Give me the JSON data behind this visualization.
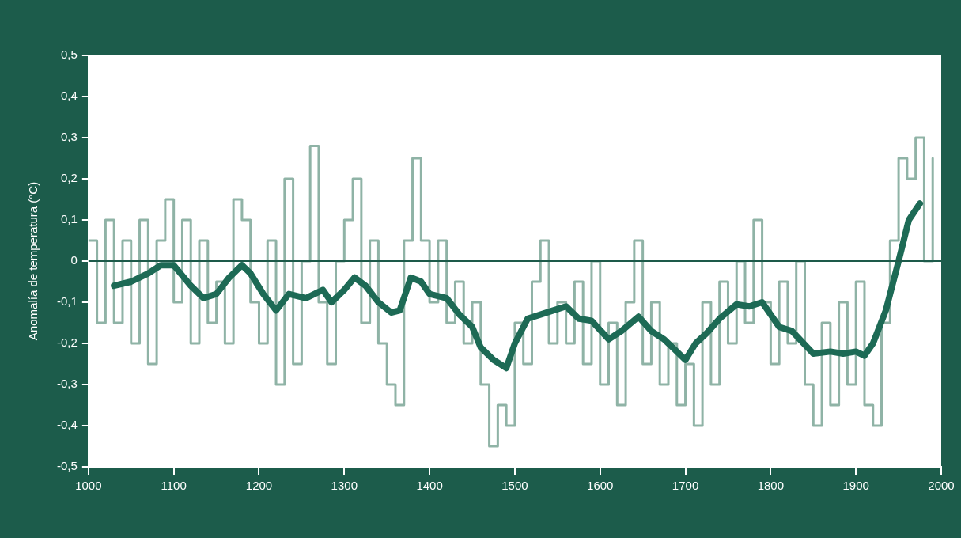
{
  "chart_data": {
    "type": "line",
    "ylabel": "Anomalía de temperatura (°C)",
    "xlim": [
      1000,
      2000
    ],
    "xticks": [
      1000,
      1100,
      1200,
      1300,
      1400,
      1500,
      1600,
      1700,
      1800,
      1900,
      2000
    ],
    "ylim": [
      -0.5,
      0.5
    ],
    "yticks": [
      {
        "value": -0.5,
        "label": "-0,5"
      },
      {
        "value": -0.4,
        "label": "-0,4"
      },
      {
        "value": -0.3,
        "label": "-0,3"
      },
      {
        "value": -0.2,
        "label": "-0,2"
      },
      {
        "value": -0.1,
        "label": "-0,1"
      },
      0,
      {
        "value": 0.1,
        "label": "0,1"
      },
      {
        "value": 0.2,
        "label": "0,2"
      },
      {
        "value": 0.3,
        "label": "0,3"
      },
      {
        "value": 0.4,
        "label": "0,4"
      },
      {
        "value": 0.5,
        "label": "0,5"
      }
    ],
    "grid": false,
    "legend": false,
    "ref_lines": [
      {
        "axis": "y",
        "value": 0,
        "color": "#1d5a4a"
      }
    ],
    "series": [
      {
        "type": "step",
        "color": "#8fb3a6",
        "x": [
          1000,
          1010,
          1020,
          1030,
          1040,
          1050,
          1060,
          1070,
          1080,
          1090,
          1100,
          1110,
          1120,
          1130,
          1140,
          1150,
          1160,
          1170,
          1180,
          1190,
          1200,
          1210,
          1220,
          1230,
          1240,
          1250,
          1260,
          1270,
          1280,
          1290,
          1300,
          1310,
          1320,
          1330,
          1340,
          1350,
          1360,
          1370,
          1380,
          1390,
          1400,
          1410,
          1420,
          1430,
          1440,
          1450,
          1460,
          1470,
          1480,
          1490,
          1500,
          1510,
          1520,
          1530,
          1540,
          1550,
          1560,
          1570,
          1580,
          1590,
          1600,
          1610,
          1620,
          1630,
          1640,
          1650,
          1660,
          1670,
          1680,
          1690,
          1700,
          1710,
          1720,
          1730,
          1740,
          1750,
          1760,
          1770,
          1780,
          1790,
          1800,
          1810,
          1820,
          1830,
          1840,
          1850,
          1860,
          1870,
          1880,
          1890,
          1900,
          1910,
          1920,
          1930,
          1940,
          1950,
          1960,
          1970,
          1980,
          1990
        ],
        "values": [
          0.05,
          -0.15,
          0.1,
          -0.15,
          0.05,
          -0.2,
          0.1,
          -0.25,
          0.05,
          0.15,
          -0.1,
          0.1,
          -0.2,
          0.05,
          -0.15,
          -0.05,
          -0.2,
          0.15,
          0.1,
          -0.1,
          -0.2,
          0.05,
          -0.3,
          0.2,
          -0.25,
          0,
          0.28,
          -0.1,
          -0.25,
          0,
          0.1,
          0.2,
          -0.15,
          0.05,
          -0.2,
          -0.3,
          -0.35,
          0.05,
          0.25,
          0.05,
          -0.1,
          0.05,
          -0.15,
          -0.05,
          -0.2,
          -0.1,
          -0.3,
          -0.45,
          -0.35,
          -0.4,
          -0.15,
          -0.25,
          -0.05,
          0.05,
          -0.2,
          -0.1,
          -0.2,
          -0.05,
          -0.25,
          0,
          -0.3,
          -0.15,
          -0.35,
          -0.1,
          0.05,
          -0.25,
          -0.1,
          -0.3,
          -0.2,
          -0.35,
          -0.25,
          -0.4,
          -0.1,
          -0.3,
          -0.05,
          -0.2,
          0,
          -0.15,
          0.1,
          -0.1,
          -0.25,
          -0.05,
          -0.2,
          0,
          -0.3,
          -0.4,
          -0.15,
          -0.35,
          -0.1,
          -0.3,
          -0.05,
          -0.35,
          -0.4,
          -0.15,
          0.05,
          0.25,
          0.2,
          0.3,
          0,
          0.25
        ]
      },
      {
        "type": "line",
        "color": "#1d6a55",
        "x": [
          1030,
          1050,
          1070,
          1085,
          1100,
          1120,
          1135,
          1150,
          1165,
          1180,
          1190,
          1205,
          1220,
          1235,
          1255,
          1275,
          1285,
          1300,
          1312,
          1325,
          1340,
          1355,
          1365,
          1378,
          1390,
          1400,
          1420,
          1435,
          1450,
          1460,
          1475,
          1490,
          1500,
          1515,
          1530,
          1545,
          1560,
          1575,
          1590,
          1610,
          1625,
          1645,
          1660,
          1675,
          1690,
          1700,
          1712,
          1725,
          1740,
          1760,
          1775,
          1790,
          1810,
          1825,
          1850,
          1870,
          1885,
          1900,
          1910,
          1920,
          1935,
          1950,
          1962,
          1975
        ],
        "values": [
          -0.06,
          -0.05,
          -0.03,
          -0.01,
          -0.01,
          -0.06,
          -0.09,
          -0.08,
          -0.04,
          -0.01,
          -0.03,
          -0.08,
          -0.12,
          -0.08,
          -0.09,
          -0.07,
          -0.1,
          -0.07,
          -0.04,
          -0.06,
          -0.1,
          -0.125,
          -0.12,
          -0.04,
          -0.05,
          -0.08,
          -0.09,
          -0.13,
          -0.16,
          -0.21,
          -0.24,
          -0.26,
          -0.2,
          -0.14,
          -0.13,
          -0.12,
          -0.11,
          -0.14,
          -0.145,
          -0.19,
          -0.17,
          -0.135,
          -0.17,
          -0.19,
          -0.22,
          -0.24,
          -0.2,
          -0.175,
          -0.14,
          -0.105,
          -0.11,
          -0.1,
          -0.16,
          -0.17,
          -0.225,
          -0.22,
          -0.225,
          -0.22,
          -0.23,
          -0.2,
          -0.12,
          0,
          0.1,
          0.14
        ]
      }
    ]
  }
}
